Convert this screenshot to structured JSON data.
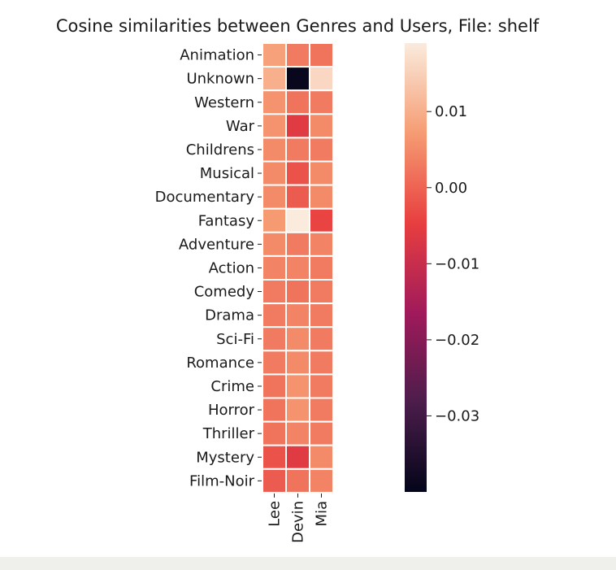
{
  "chart_data": {
    "type": "heatmap",
    "title": "Cosine similarities between Genres and Users, File: shelf",
    "rows": [
      "Animation",
      "Unknown",
      "Western",
      "War",
      "Childrens",
      "Musical",
      "Documentary",
      "Fantasy",
      "Adventure",
      "Action",
      "Comedy",
      "Drama",
      "Sci-Fi",
      "Romance",
      "Crime",
      "Horror",
      "Thriller",
      "Mystery",
      "Film-Noir"
    ],
    "columns": [
      "Lee",
      "Devin",
      "Mia"
    ],
    "values": [
      [
        0.008,
        0.003,
        0.002
      ],
      [
        0.01,
        -0.039,
        0.016
      ],
      [
        0.006,
        0.002,
        0.003
      ],
      [
        0.006,
        -0.006,
        0.005
      ],
      [
        0.005,
        0.003,
        0.003
      ],
      [
        0.005,
        -0.002,
        0.005
      ],
      [
        0.005,
        -0.001,
        0.005
      ],
      [
        0.007,
        0.019,
        -0.004
      ],
      [
        0.005,
        0.003,
        0.004
      ],
      [
        0.004,
        0.004,
        0.003
      ],
      [
        0.003,
        0.002,
        0.003
      ],
      [
        0.003,
        0.004,
        0.003
      ],
      [
        0.003,
        0.005,
        0.003
      ],
      [
        0.003,
        0.005,
        0.003
      ],
      [
        0.002,
        0.006,
        0.003
      ],
      [
        0.002,
        0.006,
        0.003
      ],
      [
        0.002,
        0.004,
        0.003
      ],
      [
        -0.002,
        -0.006,
        0.005
      ],
      [
        -0.001,
        0.002,
        0.004
      ]
    ],
    "colorbar": {
      "min": -0.04,
      "max": 0.019,
      "ticks": [
        0.01,
        0.0,
        -0.01,
        -0.02,
        -0.03
      ],
      "tick_labels": [
        "0.01",
        "0.00",
        "−0.01",
        "−0.02",
        "−0.03"
      ]
    },
    "colormap": [
      "#03051a",
      "#4c1d4b",
      "#a11a5b",
      "#e83f3f",
      "#f69c73",
      "#faebdd"
    ]
  }
}
